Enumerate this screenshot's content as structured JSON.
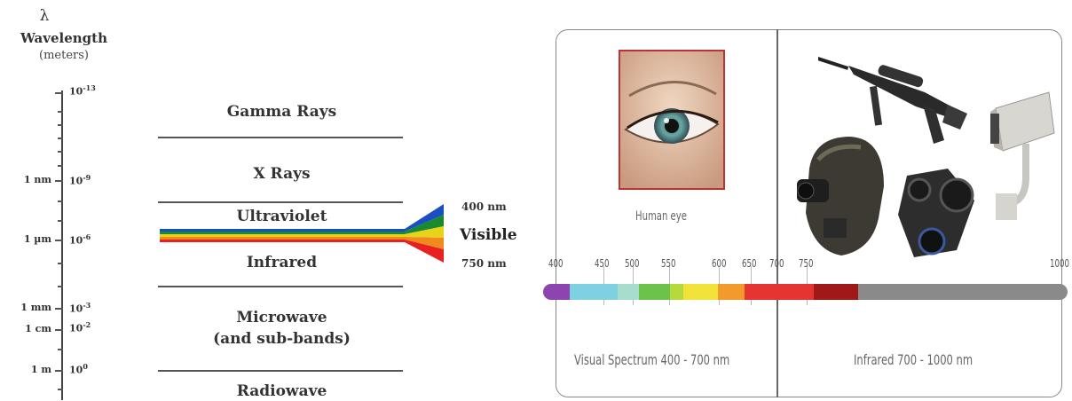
{
  "left_diagram": {
    "symbol": "λ",
    "axis_title": "Wavelength",
    "axis_unit": "(meters)",
    "ticks": [
      {
        "unit": "",
        "base": "10",
        "exp": "-13"
      },
      {
        "unit": "1 nm",
        "base": "10",
        "exp": "-9"
      },
      {
        "unit": "1 µm",
        "base": "10",
        "exp": "-6"
      },
      {
        "unit": "1 mm",
        "base": "10",
        "exp": "-3"
      },
      {
        "unit": "1 cm",
        "base": "10",
        "exp": "-2"
      },
      {
        "unit": "1 m",
        "base": "10",
        "exp": "0"
      }
    ],
    "bands": [
      "Gamma Rays",
      "X Rays",
      "Ultraviolet",
      "Infrared",
      "Microwave",
      "(and sub-bands)",
      "Radiowave"
    ],
    "visible": {
      "top_nm": "400 nm",
      "label": "Visible",
      "bottom_nm": "750 nm"
    },
    "visible_colors": [
      "#1a4fc4",
      "#1a8a2e",
      "#e8d31a",
      "#f08a1e",
      "#e82020"
    ]
  },
  "right_panel": {
    "eye_caption": "Human eye",
    "scale_labels": [
      "400",
      "450",
      "500",
      "550",
      "600",
      "650",
      "700",
      "750",
      "1000"
    ],
    "spectrum_segments": [
      {
        "from": 400,
        "to": 430,
        "color": "#8e44b0"
      },
      {
        "from": 430,
        "to": 485,
        "color": "#7fd0e0"
      },
      {
        "from": 485,
        "to": 510,
        "color": "#a8dccc"
      },
      {
        "from": 510,
        "to": 545,
        "color": "#6cc24a"
      },
      {
        "from": 545,
        "to": 560,
        "color": "#b6d93c"
      },
      {
        "from": 560,
        "to": 600,
        "color": "#f1e33a"
      },
      {
        "from": 600,
        "to": 630,
        "color": "#f39a2c"
      },
      {
        "from": 630,
        "to": 710,
        "color": "#e53530"
      },
      {
        "from": 710,
        "to": 760,
        "color": "#a01818"
      },
      {
        "from": 760,
        "to": 1000,
        "color": "#8a8a8a"
      }
    ],
    "visual_caption": "Visual Spectrum 400 - 700 nm",
    "infrared_caption": "Infrared 700 - 1000 nm",
    "devices": [
      "scope-rifle",
      "night-vision-helmet",
      "night-vision-binoculars",
      "security-camera"
    ]
  }
}
